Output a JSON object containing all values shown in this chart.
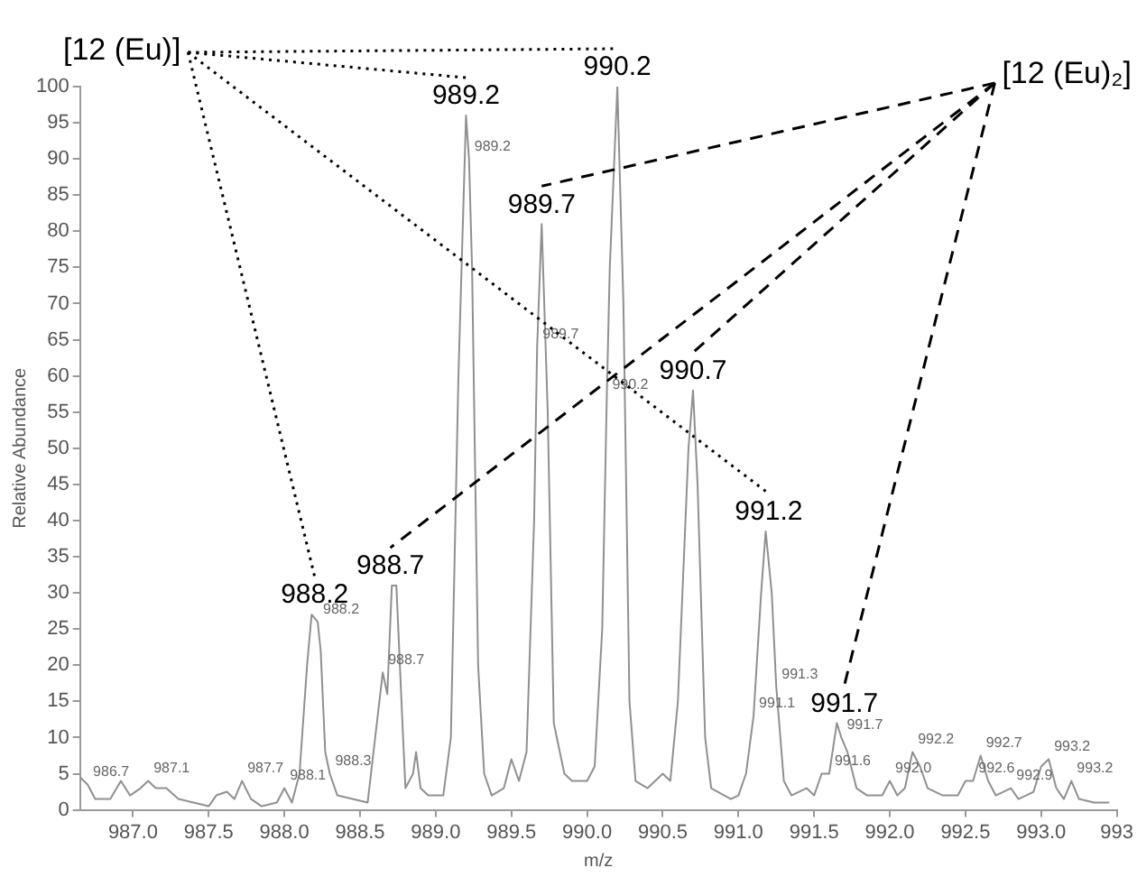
{
  "chart_data": {
    "type": "line",
    "xlabel": "m/z",
    "ylabel": "Relative Abundance",
    "x": [
      986.65,
      986.7,
      986.75,
      986.85,
      986.92,
      986.98,
      987.05,
      987.1,
      987.15,
      987.22,
      987.3,
      987.4,
      987.5,
      987.55,
      987.62,
      987.67,
      987.72,
      987.78,
      987.85,
      987.95,
      988.0,
      988.05,
      988.1,
      988.15,
      988.18,
      988.22,
      988.24,
      988.27,
      988.3,
      988.35,
      988.45,
      988.55,
      988.6,
      988.65,
      988.68,
      988.71,
      988.74,
      988.78,
      988.8,
      988.85,
      988.87,
      988.9,
      988.95,
      989.05,
      989.1,
      989.15,
      989.2,
      989.22,
      989.24,
      989.28,
      989.32,
      989.37,
      989.45,
      989.5,
      989.55,
      989.6,
      989.65,
      989.67,
      989.7,
      989.74,
      989.78,
      989.8,
      989.85,
      989.9,
      990.0,
      990.05,
      990.1,
      990.13,
      990.15,
      990.2,
      990.24,
      990.28,
      990.32,
      990.4,
      990.5,
      990.55,
      990.6,
      990.67,
      990.7,
      990.73,
      990.78,
      990.82,
      990.95,
      991.0,
      991.05,
      991.1,
      991.15,
      991.18,
      991.22,
      991.25,
      991.3,
      991.35,
      991.45,
      991.5,
      991.55,
      991.6,
      991.65,
      991.68,
      991.72,
      991.78,
      991.85,
      991.95,
      992.0,
      992.05,
      992.1,
      992.15,
      992.2,
      992.25,
      992.35,
      992.45,
      992.5,
      992.55,
      992.6,
      992.65,
      992.7,
      992.8,
      992.85,
      992.95,
      993.0,
      993.05,
      993.1,
      993.15,
      993.2,
      993.25,
      993.35,
      993.45
    ],
    "values": [
      4.5,
      3.5,
      1.5,
      1.5,
      4,
      2,
      3,
      4,
      3,
      3,
      1.5,
      1,
      0.5,
      2,
      2.5,
      1.5,
      4,
      1.5,
      0.5,
      1,
      3,
      1,
      5,
      20,
      27,
      26,
      22,
      8,
      5,
      2,
      1.5,
      1,
      10,
      19,
      16,
      31,
      31,
      12,
      3,
      5,
      8,
      3,
      2,
      2,
      10,
      60,
      96,
      90,
      75,
      20,
      5,
      2,
      3,
      7,
      4,
      8,
      40,
      64,
      81,
      55,
      12,
      10,
      5,
      4,
      4,
      6,
      25,
      57,
      75,
      100,
      70,
      15,
      4,
      3,
      5,
      4,
      15,
      50,
      58,
      45,
      10,
      3,
      1.5,
      2,
      5,
      13,
      30,
      38.5,
      30,
      17,
      4,
      2,
      3,
      2,
      5,
      5,
      12,
      10,
      8,
      3,
      2,
      2,
      4,
      2,
      3,
      8,
      6,
      3,
      2,
      2,
      4,
      4,
      7.5,
      4,
      2,
      3,
      1.5,
      2.5,
      6,
      7,
      3,
      1.5,
      4,
      1.5,
      1,
      1
    ],
    "color": "#909090",
    "marker": "none",
    "line_style": "solid",
    "grid": false,
    "legend": false,
    "xlim": [
      986.65,
      993.5
    ],
    "xticks": [
      {
        "value": 987,
        "label": "987.0"
      },
      {
        "value": 987.5,
        "label": "987.5"
      },
      {
        "value": 988,
        "label": "988.0"
      },
      {
        "value": 988.5,
        "label": "988.5"
      },
      {
        "value": 989,
        "label": "989.0"
      },
      {
        "value": 989.5,
        "label": "989.5"
      },
      {
        "value": 990,
        "label": "990.0"
      },
      {
        "value": 990.5,
        "label": "990.5"
      },
      {
        "value": 991,
        "label": "991.0"
      },
      {
        "value": 991.5,
        "label": "991.5"
      },
      {
        "value": 992,
        "label": "992.0"
      },
      {
        "value": 992.5,
        "label": "992.5"
      },
      {
        "value": 993,
        "label": "993.0"
      },
      {
        "value": 993.5,
        "label": "993"
      }
    ],
    "ylim": [
      0,
      100
    ],
    "yticks": [
      0,
      5,
      10,
      15,
      20,
      25,
      30,
      35,
      40,
      45,
      50,
      55,
      60,
      65,
      70,
      75,
      80,
      85,
      90,
      95,
      100
    ],
    "annotations": [
      {
        "text": "986.7",
        "x": 986.7,
        "y": 3.5
      },
      {
        "text": "987.1",
        "x": 987.1,
        "y": 4
      },
      {
        "text": "987.7",
        "x": 987.72,
        "y": 4
      },
      {
        "text": "988.1",
        "x": 988.0,
        "y": 3
      },
      {
        "text": "988.2",
        "x": 988.22,
        "y": 26
      },
      {
        "text": "988.7",
        "x": 988.65,
        "y": 19
      },
      {
        "text": "988.3",
        "x": 988.3,
        "y": 5
      },
      {
        "text": "989.2",
        "x": 989.22,
        "y": 90
      },
      {
        "text": "989.7",
        "x": 989.67,
        "y": 64
      },
      {
        "text": "990.2",
        "x": 990.13,
        "y": 57
      },
      {
        "text": "991.1",
        "x": 991.1,
        "y": 13
      },
      {
        "text": "991.3",
        "x": 991.25,
        "y": 17
      },
      {
        "text": "991.6",
        "x": 991.6,
        "y": 5
      },
      {
        "text": "991.7",
        "x": 991.68,
        "y": 10
      },
      {
        "text": "992.0",
        "x": 992.0,
        "y": 4
      },
      {
        "text": "992.2",
        "x": 992.15,
        "y": 8
      },
      {
        "text": "992.6",
        "x": 992.55,
        "y": 4
      },
      {
        "text": "992.7",
        "x": 992.6,
        "y": 7.5
      },
      {
        "text": "992.9",
        "x": 992.8,
        "y": 3
      },
      {
        "text": "993.2",
        "x": 993.05,
        "y": 7
      },
      {
        "text": "993.2",
        "x": 993.2,
        "y": 4
      },
      "[12 (Eu)]",
      {
        "text": "988.2",
        "x": 988.2,
        "y": 27
      },
      {
        "text": "989.2",
        "x": 989.2,
        "y": 96
      },
      {
        "text": "990.2",
        "x": 990.2,
        "y": 100
      },
      {
        "text": "991.2",
        "x": 991.2,
        "y": 38.5
      },
      "[12 (Eu)₂]",
      {
        "text": "988.7",
        "x": 988.7,
        "y": 31
      },
      {
        "text": "989.7",
        "x": 989.7,
        "y": 81
      },
      {
        "text": "990.7",
        "x": 990.7,
        "y": 58
      },
      {
        "text": "991.7",
        "x": 991.7,
        "y": 12
      }
    ]
  }
}
